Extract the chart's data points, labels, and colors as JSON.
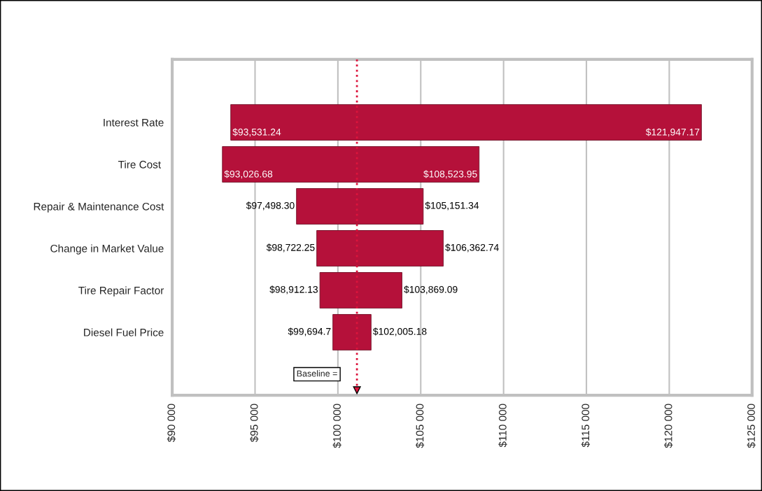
{
  "chart_data": {
    "type": "bar",
    "orientation": "horizontal",
    "categories": [
      null,
      "Interest Rate",
      "Tire Cost ",
      "Repair & Maintenance Cost",
      "Change in Market Value",
      "Tire Repair Factor",
      "Diesel Fuel Price",
      null
    ],
    "base": [
      null,
      93531.24,
      93026.68,
      97498.3,
      98722.25,
      98912.13,
      99694.7,
      null
    ],
    "values": [
      null,
      28415.93,
      15497.27,
      7653.04,
      7640.49,
      4956.96,
      2310.48,
      null
    ],
    "value_labels": [
      null,
      "$121,947.17",
      "$108,523.95",
      "$105,151.34",
      "$106,362.74",
      "$103,869.09",
      "$102,005.18",
      null
    ],
    "color": "#b5113a",
    "annotations": [
      {
        "text": "$93,531.24",
        "x": 93531.24,
        "y": "Interest Rate"
      },
      {
        "text": "$93,026.68",
        "x": 93026.68,
        "y": "Tire Cost "
      },
      {
        "text": "$97,498.30",
        "x": 97498.3,
        "y": "Repair & Maintenance Cost"
      },
      {
        "text": "$98,722.25",
        "x": 98722.25,
        "y": "Change in Market Value"
      },
      {
        "text": "$98,912.13",
        "x": 98912.13,
        "y": "Tire Repair Factor"
      },
      {
        "text": "$99,694.7",
        "x": 99694.7,
        "y": "Diesel Fuel Price"
      }
    ],
    "ref_lines": [
      {
        "axis": "x",
        "value": 101150,
        "label": "Baseline =",
        "color": "#dc143c",
        "line_style": "dotted"
      }
    ],
    "xlim": [
      90000,
      125000
    ],
    "xticks": [
      {
        "value": 90000,
        "label": "$90 000"
      },
      {
        "value": 95000,
        "label": "$95 000"
      },
      {
        "value": 100000,
        "label": "$100 000"
      },
      {
        "value": 105000,
        "label": "$105 000"
      },
      {
        "value": 110000,
        "label": "$110 000"
      },
      {
        "value": 115000,
        "label": "$115 000"
      },
      {
        "value": 120000,
        "label": "$120 000"
      },
      {
        "value": 125000,
        "label": "$125 000"
      }
    ],
    "grid": "x",
    "legend": false
  }
}
